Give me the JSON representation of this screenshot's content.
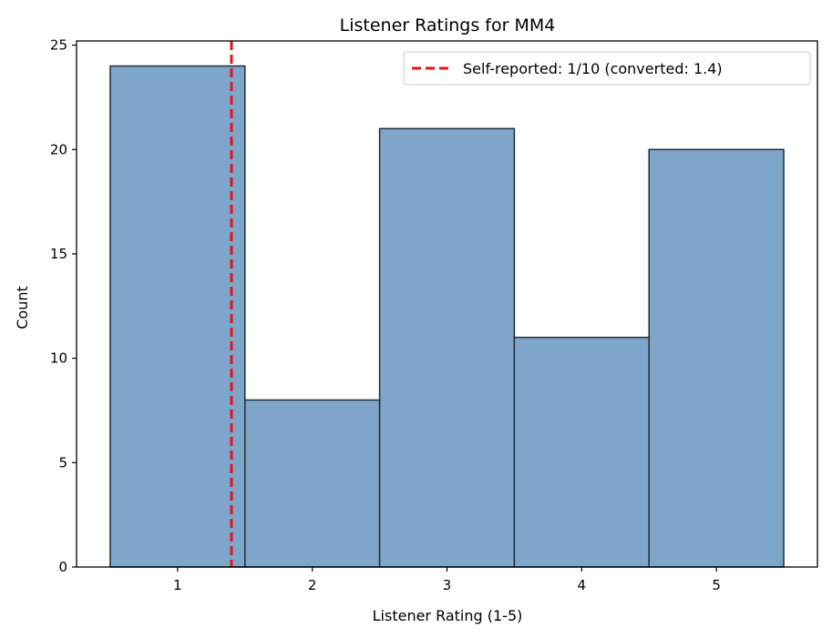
{
  "chart_data": {
    "type": "bar",
    "title": "Listener Ratings for MM4",
    "xlabel": "Listener Rating (1-5)",
    "ylabel": "Count",
    "categories": [
      1,
      2,
      3,
      4,
      5
    ],
    "values": [
      24,
      8,
      21,
      11,
      20
    ],
    "bin_width": 1,
    "xlim": [
      0.25,
      5.75
    ],
    "ylim": [
      0,
      25.2
    ],
    "xticks": [
      1,
      2,
      3,
      4,
      5
    ],
    "yticks": [
      0,
      5,
      10,
      15,
      20,
      25
    ],
    "bar_color": "#7ea6ca",
    "bar_edge_color": "#222d38",
    "reference_line": {
      "x": 1.4,
      "color": "#e8141c",
      "style": "dashed",
      "label": "Self-reported: 1/10 (converted: 1.4)"
    },
    "legend_position": "top-right",
    "grid": false
  }
}
